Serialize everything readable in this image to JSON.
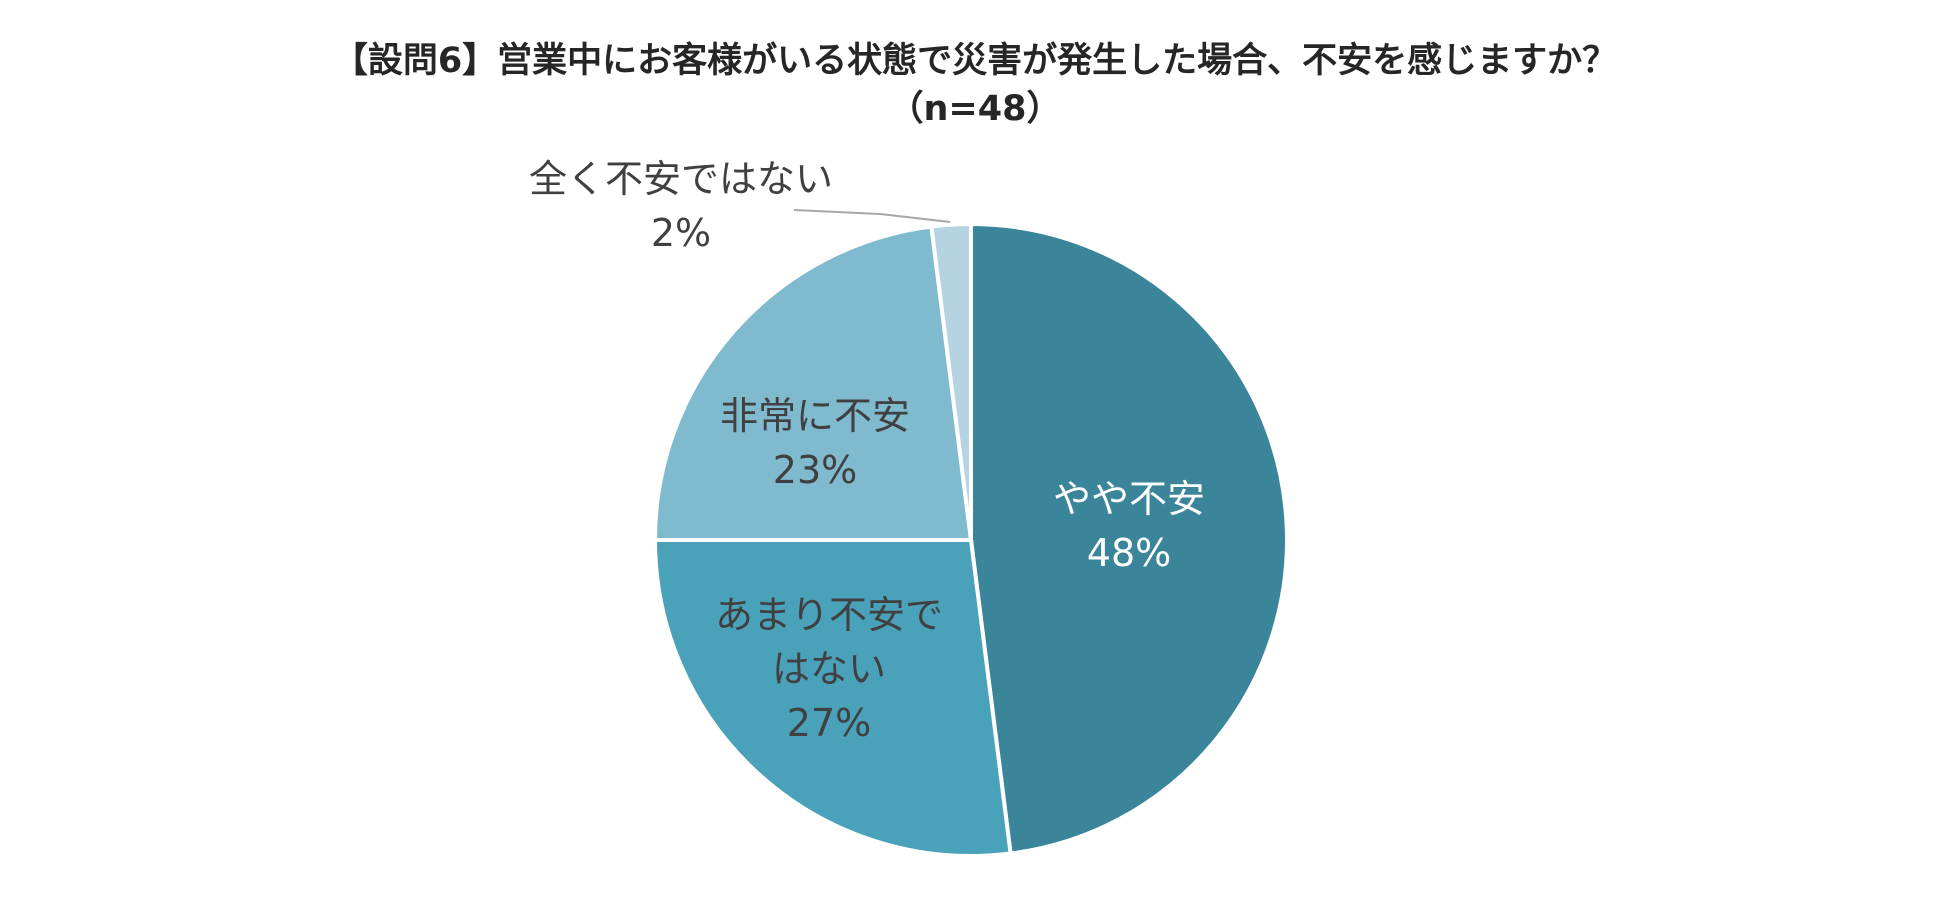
{
  "chart_data": {
    "type": "pie",
    "title": "【設問6】営業中にお客様がいる状態で災害が発生した場合、不安を感じますか？",
    "subtitle": "（n=48）",
    "categories": [
      "やや不安",
      "あまり不安ではない",
      "非常に不安",
      "全く不安ではない"
    ],
    "values": [
      48,
      27,
      23,
      2
    ],
    "value_labels": [
      "48%",
      "27%",
      "23%",
      "2%"
    ],
    "colors": [
      "#3a8599",
      "#4aa2ba",
      "#7fbacf",
      "#b5d3e0"
    ]
  }
}
